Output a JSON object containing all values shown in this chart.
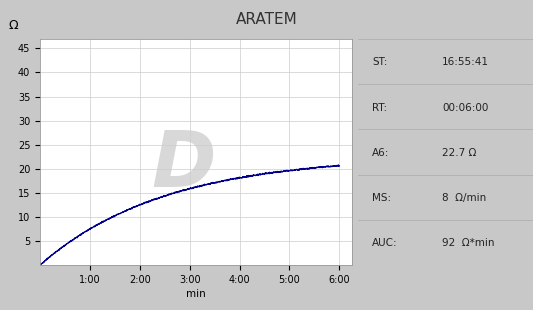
{
  "title": "ARATEM",
  "title_bg": "#FAFFA0",
  "outer_bg": "#C8C8C8",
  "plot_bg": "#FFFFFF",
  "grid_color": "#CCCCCC",
  "curve_color": "#00008B",
  "watermark_text": "D",
  "watermark_color": "#D8D8D8",
  "x_label": "min",
  "y_label": "Ω",
  "x_ticks": [
    60,
    120,
    180,
    240,
    300,
    360
  ],
  "x_tick_labels": [
    "1:00",
    "2:00",
    "3:00",
    "4:00",
    "5:00",
    "6:00"
  ],
  "y_ticks": [
    5,
    10,
    15,
    20,
    25,
    30,
    35,
    40,
    45
  ],
  "x_max": 375,
  "y_max": 47,
  "y_min": 0,
  "info_labels": [
    "ST:",
    "RT:",
    "A6:",
    "MS:",
    "AUC:"
  ],
  "info_values": [
    "16:55:41",
    "00:06:00",
    "22.7 Ω",
    "8  Ω/min",
    "92  Ω*min"
  ],
  "info_row_colors": [
    "#D5D5D5",
    "#C5C5C5",
    "#D5D5D5",
    "#C5C5C5",
    "#D5D5D5"
  ],
  "curve_max": 22.7,
  "curve_tau": 150,
  "curve_time_max": 360
}
